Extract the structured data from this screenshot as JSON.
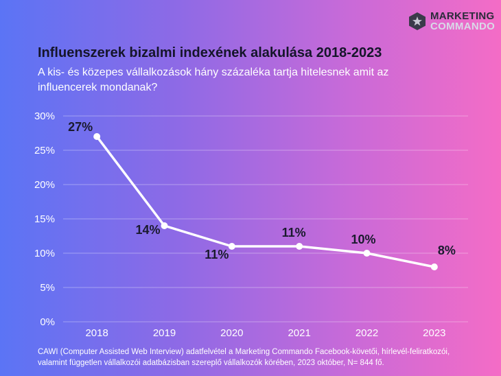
{
  "brand": {
    "line1": "MARKETING",
    "line2": "COMMANDO",
    "icon": "star-hexagon-icon"
  },
  "header": {
    "title": "Influenszerek bizalmi indexének alakulása 2018-2023",
    "subtitle": "A kis- és közepes vállalkozások hány százaléka tartja hitelesnek amit az influencerek mondanak?"
  },
  "chart_data": {
    "type": "line",
    "categories": [
      "2018",
      "2019",
      "2020",
      "2021",
      "2022",
      "2023"
    ],
    "series": [
      {
        "values": [
          27,
          14,
          11,
          11,
          10,
          8
        ]
      }
    ],
    "data_labels": [
      "27%",
      "14%",
      "11%",
      "11%",
      "10%",
      "8%"
    ],
    "y_ticks": [
      0,
      5,
      10,
      15,
      20,
      25,
      30
    ],
    "y_tick_labels": [
      "0%",
      "5%",
      "10%",
      "15%",
      "20%",
      "25%",
      "30%"
    ],
    "ylim": [
      0,
      30
    ],
    "grid": true,
    "line_color": "#ffffff",
    "label_color": "#1a1a2e"
  },
  "footnote": "CAWI (Computer Assisted Web Interview) adatfelvétel a Marketing Commando Facebook-követői, hírlevél-feliratkozói, valamint független vállalkozói adatbázisban szereplő vállalkozók körében, 2023 október, N= 844 fő."
}
